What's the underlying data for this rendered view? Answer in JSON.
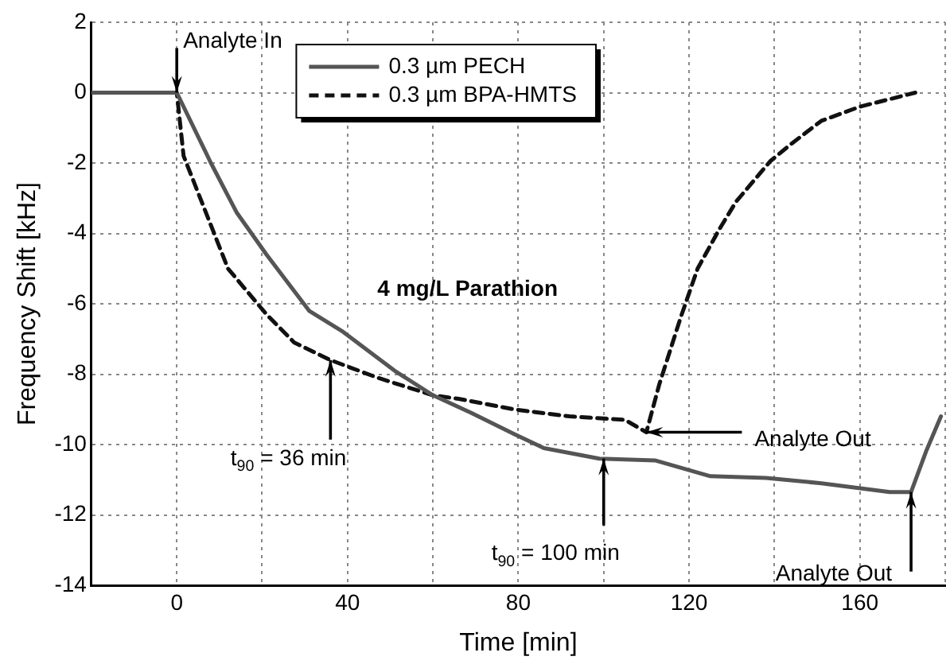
{
  "chart_data": {
    "type": "line",
    "xlabel": "Time [min]",
    "ylabel": "Frequency Shift [kHz]",
    "xlim": [
      -20,
      180
    ],
    "xticks": [
      {
        "value": -20,
        "label": null
      },
      0,
      {
        "value": 20,
        "label": null
      },
      40,
      {
        "value": 60,
        "label": null
      },
      80,
      {
        "value": 100,
        "label": null
      },
      120,
      {
        "value": 140,
        "label": null
      },
      160,
      {
        "value": 180,
        "label": null
      }
    ],
    "ylim": [
      -14,
      2
    ],
    "yticks": [
      -14,
      -12,
      -10,
      -8,
      -6,
      -4,
      -2,
      0,
      2
    ],
    "grid": true,
    "legend": "top",
    "marker": "none",
    "series": [
      {
        "name": "0.3 µm PECH",
        "color": "#555555",
        "line_style": "solid",
        "x": [
          -20,
          0,
          8,
          14,
          21,
          31,
          39,
          51,
          60,
          69,
          79,
          86,
          99,
          112,
          125,
          138,
          151,
          167,
          172,
          175.5,
          179
        ],
        "values": [
          0,
          0,
          -2,
          -3.4,
          -4.6,
          -6.2,
          -6.8,
          -7.9,
          -8.6,
          -9.1,
          -9.7,
          -10.1,
          -10.4,
          -10.45,
          -10.9,
          -10.95,
          -11.1,
          -11.35,
          -11.35,
          -10.2,
          -9.2
        ]
      },
      {
        "name": "0.3 µm BPA-HMTS",
        "color": "#111111",
        "line_style": "dashed",
        "x": [
          -20,
          0,
          1.6,
          6.8,
          12,
          21,
          27.5,
          36,
          47,
          60,
          66,
          79,
          92,
          105,
          110,
          113,
          118,
          122,
          127,
          131,
          139,
          144,
          151,
          160,
          173
        ],
        "values": [
          0,
          0,
          -1.8,
          -3.4,
          -5,
          -6.3,
          -7.1,
          -7.6,
          -8.1,
          -8.6,
          -8.7,
          -9,
          -9.2,
          -9.3,
          -9.65,
          -8.3,
          -6.4,
          -5,
          -3.9,
          -3.1,
          -1.95,
          -1.45,
          -0.8,
          -0.4,
          0
        ]
      }
    ],
    "annotations": [
      {
        "text": "Analyte In",
        "x": 0,
        "y": 0
      },
      "4 mg/L Parathion",
      {
        "text": "t$_{90}$ = 36 min",
        "x": 36,
        "y": -7.6
      },
      {
        "text": "t$_{90}$ = 100 min",
        "x": 100,
        "y": -10.4
      },
      {
        "text": "Analyte Out",
        "x": 110,
        "y": -9.65
      },
      {
        "text": "Analyte Out",
        "x": 172,
        "y": -11.35
      }
    ]
  }
}
